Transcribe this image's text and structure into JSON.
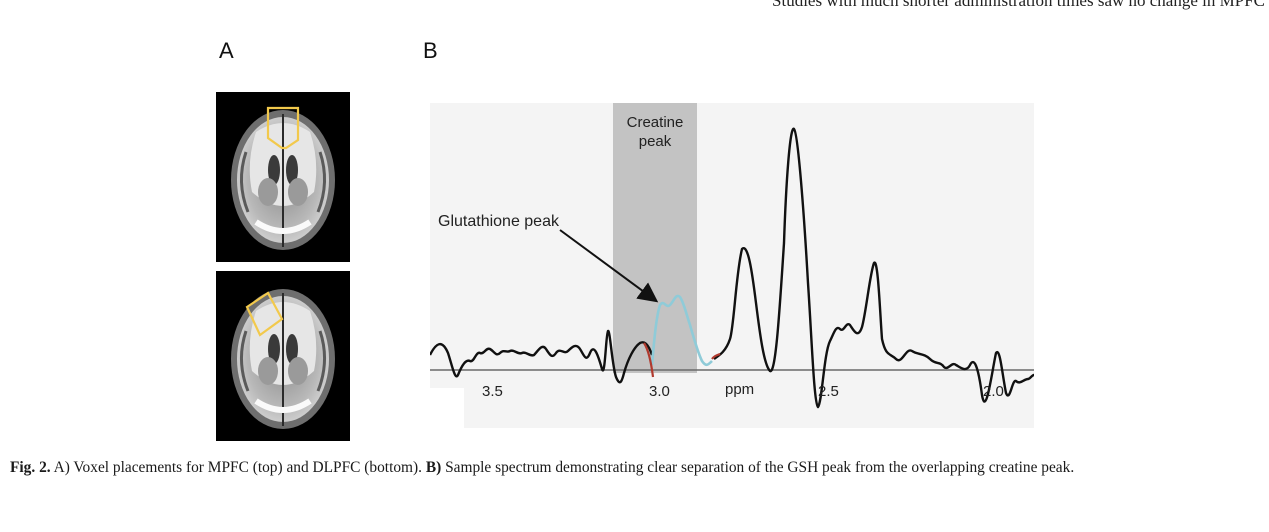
{
  "page_header": {
    "left": "",
    "right": "Studies with much shorter administration times saw no change in MPFC"
  },
  "figure": {
    "panel_a_label": "A",
    "panel_b_label": "B",
    "panel_a": {
      "top_image": "axial brain slice with MPFC voxel",
      "bottom_image": "axial brain slice with DLPFC voxel",
      "voxel_color": "#f2c94c"
    },
    "panel_b": {
      "band_label_line1": "Creatine",
      "band_label_line2": "peak",
      "arrow_label": "Glutathione peak",
      "axis_unit": "ppm",
      "ticks": [
        "3.5",
        "3.0",
        "2.5",
        "2.0"
      ],
      "colors": {
        "spectrum": "#111111",
        "gsh_fit": "#8fcbd8",
        "edge_fit": "#b03a2e",
        "band": "#c3c3c3",
        "background": "#f4f4f4"
      }
    }
  },
  "caption": {
    "fig_label": "Fig. 2.",
    "part_a": " A) Voxel placements for MPFC (top) and DLPFC (bottom). ",
    "b_label": "B)",
    "part_b": " Sample spectrum demonstrating clear separation of the GSH peak from the overlapping creatine peak."
  }
}
